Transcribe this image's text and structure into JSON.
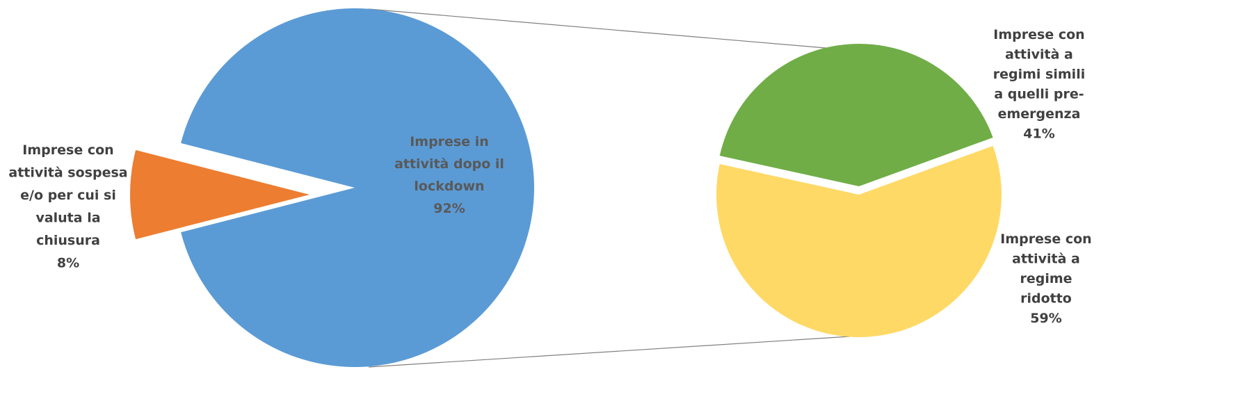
{
  "chart_data": [
    {
      "type": "pie",
      "categories": [
        "Imprese in attività dopo il lockdown",
        "Imprese con attività sospesa e/o per cui si valuta la chiusura"
      ],
      "values": [
        92,
        8
      ],
      "colors": [
        "#5b9bd5",
        "#ed7d31"
      ],
      "labels": [
        {
          "lines": [
            "Imprese in",
            "attività dopo il",
            "lockdown",
            "92%"
          ]
        },
        {
          "lines": [
            "Imprese con",
            "attività sospesa",
            "e/o per cui si",
            "valuta  la",
            "chiusura",
            "8%"
          ]
        }
      ]
    },
    {
      "type": "pie",
      "categories": [
        "Imprese con attività a regimi simili a quelli pre-emergenza",
        "Imprese con attività a regime ridotto"
      ],
      "values": [
        41,
        59
      ],
      "colors": [
        "#70ad47",
        "#ffd966"
      ],
      "labels": [
        {
          "lines": [
            "Imprese con",
            "attività a",
            "regimi simili",
            "a quelli pre-",
            "emergenza",
            "41%"
          ]
        },
        {
          "lines": [
            "Imprese con",
            "attività a",
            "regime",
            "ridotto",
            "59%"
          ]
        }
      ]
    }
  ]
}
